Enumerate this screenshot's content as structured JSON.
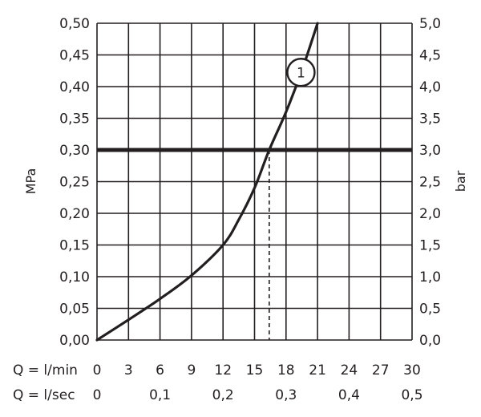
{
  "chart_data": {
    "type": "line",
    "title": "",
    "y_left": {
      "label": "MPa",
      "range": [
        0,
        0.5
      ],
      "ticks": [
        0,
        0.05,
        0.1,
        0.15,
        0.2,
        0.25,
        0.3,
        0.35,
        0.4,
        0.45,
        0.5
      ],
      "tick_labels": [
        "0,00",
        "0,05",
        "0,10",
        "0,15",
        "0,20",
        "0,25",
        "0,30",
        "0,35",
        "0,40",
        "0,45",
        "0,50"
      ]
    },
    "y_right": {
      "label": "bar",
      "range": [
        0,
        5
      ],
      "tick_labels": [
        "0,0",
        "0,5",
        "1,0",
        "1,5",
        "2,0",
        "2,5",
        "3,0",
        "3,5",
        "4,0",
        "4,5",
        "5,0"
      ]
    },
    "x": {
      "range": [
        0,
        30
      ],
      "ticks": [
        0,
        3,
        6,
        9,
        12,
        15,
        18,
        21,
        24,
        27,
        30
      ],
      "row1_label": "Q = l/min",
      "row1_tick_labels": [
        "0",
        "3",
        "6",
        "9",
        "12",
        "15",
        "18",
        "21",
        "24",
        "27",
        "30"
      ],
      "row2_label": "Q = l/sec",
      "row2_ticks": [
        0,
        6,
        12,
        18,
        24,
        30
      ],
      "row2_tick_labels": [
        "0",
        "0,1",
        "0,2",
        "0,3",
        "0,4",
        "0,5"
      ]
    },
    "grid": true,
    "series": [
      {
        "marker": "1",
        "marker_at": {
          "x": 19.5,
          "y": 0.425
        },
        "points": [
          {
            "x": 0,
            "y": 0
          },
          {
            "x": 3,
            "y": 0.032
          },
          {
            "x": 6,
            "y": 0.065
          },
          {
            "x": 9,
            "y": 0.102
          },
          {
            "x": 12,
            "y": 0.15
          },
          {
            "x": 13.5,
            "y": 0.19
          },
          {
            "x": 15,
            "y": 0.24
          },
          {
            "x": 16.4,
            "y": 0.3
          },
          {
            "x": 18,
            "y": 0.36
          },
          {
            "x": 19.5,
            "y": 0.425
          },
          {
            "x": 21,
            "y": 0.5
          }
        ]
      }
    ],
    "reference_line": {
      "y": 0.3
    },
    "dashed_drop": {
      "x": 16.4,
      "from_y": 0.3,
      "to_y": 0
    }
  }
}
